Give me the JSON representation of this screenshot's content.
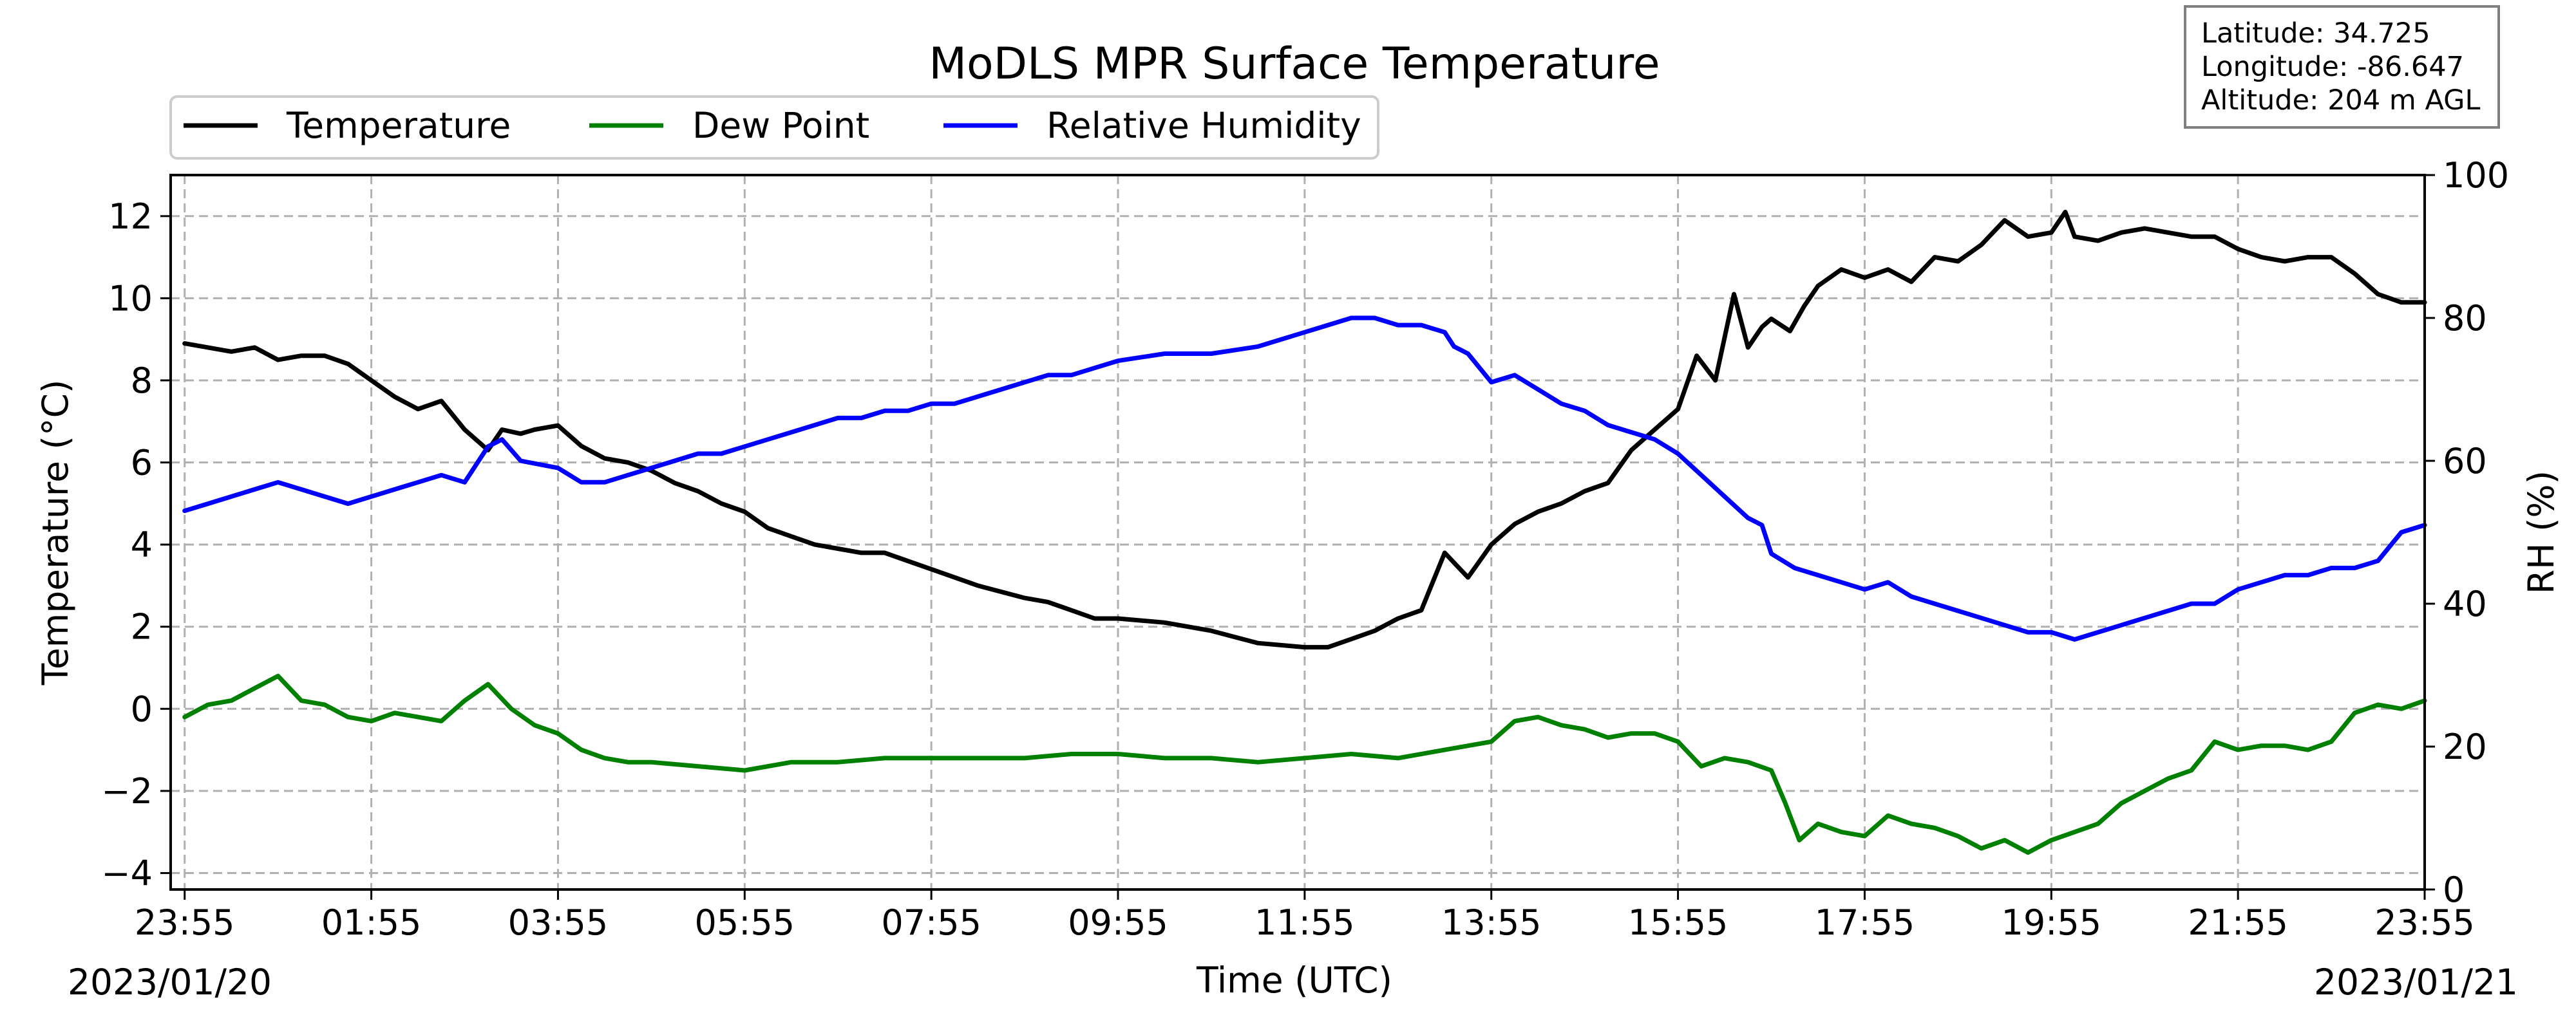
{
  "chart_data": {
    "type": "line",
    "title": "MoDLS MPR Surface Temperature",
    "xlabel": "Time (UTC)",
    "ylabel": "Temperature ($^\\circ$C)",
    "ylabel_display": "Temperature (°C)",
    "y2label": "RH (%)",
    "start_date": "2023/01/20",
    "end_date": "2023/01/21",
    "x_tick_labels": [
      "23:55",
      "01:55",
      "03:55",
      "05:55",
      "07:55",
      "09:55",
      "11:55",
      "13:55",
      "15:55",
      "17:55",
      "19:55",
      "21:55",
      "23:55"
    ],
    "x_tick_hours": [
      0,
      2,
      4,
      6,
      8,
      10,
      12,
      14,
      16,
      18,
      20,
      22,
      24
    ],
    "x_range_hours": [
      -0.15,
      24
    ],
    "ylim": [
      -4.4,
      13
    ],
    "y_ticks": [
      -4,
      -2,
      0,
      2,
      4,
      6,
      8,
      10,
      12
    ],
    "y_tick_labels": [
      "−4",
      "−2",
      "0",
      "2",
      "4",
      "6",
      "8",
      "10",
      "12"
    ],
    "y2lim": [
      0,
      100
    ],
    "y2_ticks": [
      0,
      20,
      40,
      60,
      80,
      100
    ],
    "y2_tick_labels": [
      "0",
      "20",
      "40",
      "60",
      "80",
      "100"
    ],
    "grid": true,
    "legend": {
      "placement": "top-left, above axes",
      "entries": [
        "Temperature",
        "Dew Point",
        "Relative Humidity"
      ]
    },
    "info_box": {
      "latitude": "Latitude: 34.725",
      "longitude": "Longitude: -86.647",
      "altitude": "Altitude: 204 m AGL"
    },
    "series": [
      {
        "name": "Temperature",
        "axis": "left",
        "color": "#000000",
        "x_hours": [
          0,
          0.25,
          0.5,
          0.75,
          1,
          1.25,
          1.5,
          1.75,
          2,
          2.25,
          2.5,
          2.75,
          3,
          3.25,
          3.4,
          3.6,
          3.75,
          4,
          4.25,
          4.5,
          4.75,
          5,
          5.25,
          5.5,
          5.75,
          6,
          6.25,
          6.5,
          6.75,
          7,
          7.25,
          7.5,
          7.75,
          8,
          8.5,
          9,
          9.25,
          9.5,
          9.75,
          10,
          10.5,
          11,
          11.5,
          12,
          12.25,
          12.5,
          12.75,
          13,
          13.25,
          13.5,
          13.75,
          14,
          14.1,
          14.25,
          14.5,
          14.75,
          15,
          15.25,
          15.5,
          15.75,
          16,
          16.2,
          16.4,
          16.6,
          16.75,
          16.9,
          17,
          17.2,
          17.35,
          17.5,
          17.75,
          18,
          18.25,
          18.5,
          18.75,
          19,
          19.25,
          19.5,
          19.75,
          20,
          20.15,
          20.25,
          20.5,
          20.75,
          21,
          21.25,
          21.5,
          21.75,
          22,
          22.25,
          22.5,
          22.75,
          23,
          23.25,
          23.5,
          23.75,
          24
        ],
        "values": [
          8.9,
          8.8,
          8.7,
          8.8,
          8.5,
          8.6,
          8.6,
          8.4,
          8.0,
          7.6,
          7.3,
          7.5,
          6.8,
          6.3,
          6.8,
          6.7,
          6.8,
          6.9,
          6.4,
          6.1,
          6.0,
          5.8,
          5.5,
          5.3,
          5.0,
          4.8,
          4.4,
          4.2,
          4.0,
          3.9,
          3.8,
          3.8,
          3.6,
          3.4,
          3.0,
          2.7,
          2.6,
          2.4,
          2.2,
          2.2,
          2.1,
          1.9,
          1.6,
          1.5,
          1.5,
          1.7,
          1.9,
          2.2,
          2.4,
          3.8,
          3.2,
          4.0,
          4.2,
          4.5,
          4.8,
          5.0,
          5.3,
          5.5,
          6.3,
          6.8,
          7.3,
          8.6,
          8.0,
          10.1,
          8.8,
          9.3,
          9.5,
          9.2,
          9.8,
          10.3,
          10.7,
          10.5,
          10.7,
          10.4,
          11.0,
          10.9,
          11.3,
          11.9,
          11.5,
          11.6,
          12.1,
          11.5,
          11.4,
          11.6,
          11.7,
          11.6,
          11.5,
          11.5,
          11.2,
          11.0,
          10.9,
          11.0,
          11.0,
          10.6,
          10.1,
          9.9,
          9.9
        ]
      },
      {
        "name": "Dew Point",
        "axis": "left",
        "color": "#008000",
        "x_hours": [
          0,
          0.25,
          0.5,
          0.75,
          1,
          1.25,
          1.5,
          1.75,
          2,
          2.25,
          2.5,
          2.75,
          3,
          3.25,
          3.5,
          3.75,
          4,
          4.25,
          4.5,
          4.75,
          5,
          5.5,
          6,
          6.5,
          7,
          7.5,
          8,
          8.5,
          9,
          9.5,
          10,
          10.5,
          11,
          11.5,
          12,
          12.5,
          13,
          13.5,
          14,
          14.25,
          14.5,
          14.75,
          15,
          15.25,
          15.5,
          15.75,
          16,
          16.25,
          16.5,
          16.75,
          17,
          17.15,
          17.3,
          17.5,
          17.75,
          18,
          18.25,
          18.5,
          18.75,
          19,
          19.25,
          19.5,
          19.75,
          20,
          20.25,
          20.5,
          20.75,
          21,
          21.25,
          21.5,
          21.75,
          22,
          22.25,
          22.5,
          22.75,
          23,
          23.25,
          23.5,
          23.75,
          24
        ],
        "values": [
          -0.2,
          0.1,
          0.2,
          0.5,
          0.8,
          0.2,
          0.1,
          -0.2,
          -0.3,
          -0.1,
          -0.2,
          -0.3,
          0.2,
          0.6,
          0.0,
          -0.4,
          -0.6,
          -1.0,
          -1.2,
          -1.3,
          -1.3,
          -1.4,
          -1.5,
          -1.3,
          -1.3,
          -1.2,
          -1.2,
          -1.2,
          -1.2,
          -1.1,
          -1.1,
          -1.2,
          -1.2,
          -1.3,
          -1.2,
          -1.1,
          -1.2,
          -1.0,
          -0.8,
          -0.3,
          -0.2,
          -0.4,
          -0.5,
          -0.7,
          -0.6,
          -0.6,
          -0.8,
          -1.4,
          -1.2,
          -1.3,
          -1.5,
          -2.3,
          -3.2,
          -2.8,
          -3.0,
          -3.1,
          -2.6,
          -2.8,
          -2.9,
          -3.1,
          -3.4,
          -3.2,
          -3.5,
          -3.2,
          -3.0,
          -2.8,
          -2.3,
          -2.0,
          -1.7,
          -1.5,
          -0.8,
          -1.0,
          -0.9,
          -0.9,
          -1.0,
          -0.8,
          -0.1,
          0.1,
          0.0,
          0.2
        ]
      },
      {
        "name": "Relative Humidity",
        "axis": "right",
        "color": "#0000ff",
        "x_hours": [
          0,
          0.25,
          0.5,
          0.75,
          1,
          1.25,
          1.5,
          1.75,
          2,
          2.25,
          2.5,
          2.75,
          3,
          3.25,
          3.4,
          3.6,
          4,
          4.25,
          4.5,
          4.75,
          5,
          5.25,
          5.5,
          5.75,
          6,
          6.25,
          6.5,
          6.75,
          7,
          7.25,
          7.5,
          7.75,
          8,
          8.25,
          8.5,
          8.75,
          9,
          9.25,
          9.5,
          9.75,
          10,
          10.5,
          11,
          11.5,
          12,
          12.25,
          12.5,
          12.75,
          13,
          13.25,
          13.5,
          13.6,
          13.75,
          14,
          14.25,
          14.5,
          14.75,
          15,
          15.25,
          15.5,
          15.75,
          16,
          16.25,
          16.5,
          16.75,
          16.9,
          17,
          17.25,
          17.5,
          17.75,
          18,
          18.25,
          18.5,
          18.75,
          19,
          19.25,
          19.5,
          19.75,
          20,
          20.25,
          20.5,
          20.75,
          21,
          21.25,
          21.5,
          21.75,
          22,
          22.25,
          22.5,
          22.75,
          23,
          23.25,
          23.5,
          23.75,
          24
        ],
        "values": [
          53,
          54,
          55,
          56,
          57,
          56,
          55,
          54,
          55,
          56,
          57,
          58,
          57,
          62,
          63,
          60,
          59,
          57,
          57,
          58,
          59,
          60,
          61,
          61,
          62,
          63,
          64,
          65,
          66,
          66,
          67,
          67,
          68,
          68,
          69,
          70,
          71,
          72,
          72,
          73,
          74,
          75,
          75,
          76,
          78,
          79,
          80,
          80,
          79,
          79,
          78,
          76,
          75,
          71,
          72,
          70,
          68,
          67,
          65,
          64,
          63,
          61,
          58,
          55,
          52,
          51,
          47,
          45,
          44,
          43,
          42,
          43,
          41,
          40,
          39,
          38,
          37,
          36,
          36,
          35,
          36,
          37,
          38,
          39,
          40,
          40,
          42,
          43,
          44,
          44,
          45,
          45,
          46,
          50,
          51
        ]
      }
    ]
  }
}
